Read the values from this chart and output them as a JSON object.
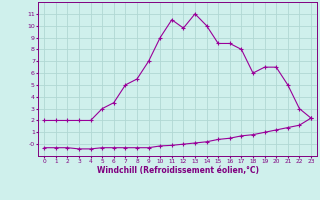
{
  "hours": [
    0,
    1,
    2,
    3,
    4,
    5,
    6,
    7,
    8,
    9,
    10,
    11,
    12,
    13,
    14,
    15,
    16,
    17,
    18,
    19,
    20,
    21,
    22,
    23
  ],
  "temp": [
    2.0,
    2.0,
    2.0,
    2.0,
    2.0,
    3.0,
    3.5,
    5.0,
    5.5,
    7.0,
    9.0,
    10.5,
    9.8,
    11.0,
    10.0,
    8.5,
    8.5,
    8.0,
    6.0,
    6.5,
    6.5,
    5.0,
    3.0,
    2.2
  ],
  "windchill": [
    -0.3,
    -0.3,
    -0.3,
    -0.4,
    -0.4,
    -0.3,
    -0.3,
    -0.3,
    -0.3,
    -0.3,
    -0.15,
    -0.1,
    0.0,
    0.1,
    0.2,
    0.4,
    0.5,
    0.7,
    0.8,
    1.0,
    1.2,
    1.4,
    1.6,
    2.2
  ],
  "line_color": "#990099",
  "bg_color": "#cff0ec",
  "grid_color": "#b0d8d4",
  "xlabel": "Windchill (Refroidissement éolien,°C)",
  "ylim_min": -1,
  "ylim_max": 12,
  "xlim_min": -0.5,
  "xlim_max": 23.5
}
